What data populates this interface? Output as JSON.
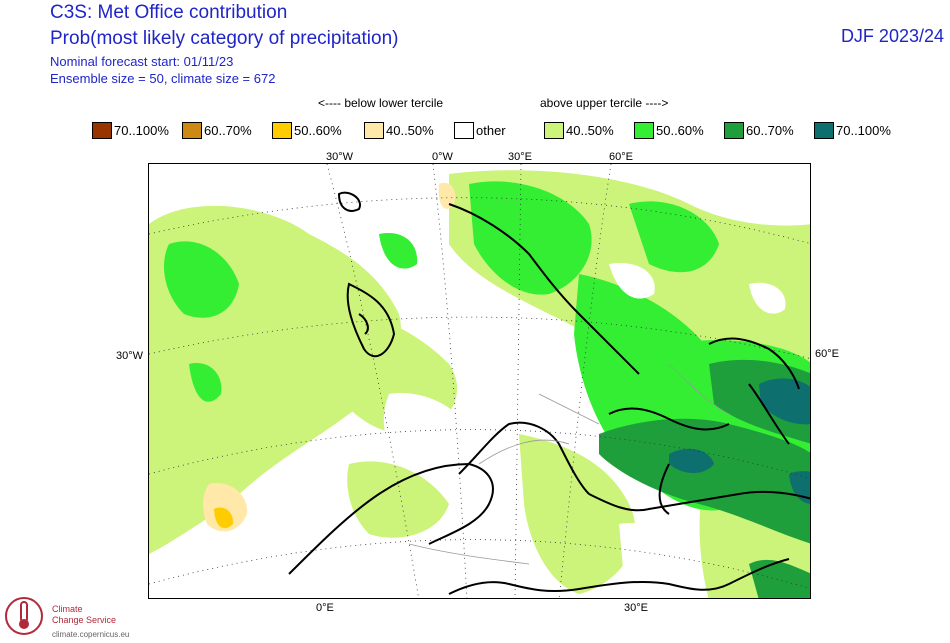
{
  "header": {
    "line1": "C3S: Met Office contribution",
    "line2": "Prob(most likely category of precipitation)",
    "line3": "Nominal forecast start: 01/11/23",
    "line4": "Ensemble size = 50, climate size = 672",
    "season": "DJF 2023/24"
  },
  "terciles": {
    "below": "<---- below lower tercile",
    "above": "above upper tercile ---->"
  },
  "legend": [
    {
      "label": "70..100%",
      "color": "#993300"
    },
    {
      "label": "60..70%",
      "color": "#cc8a14"
    },
    {
      "label": "50..60%",
      "color": "#ffcc00"
    },
    {
      "label": "40..50%",
      "color": "#ffe8a8"
    },
    {
      "label": "other",
      "color": "#ffffff"
    },
    {
      "label": "40..50%",
      "color": "#ccf37a"
    },
    {
      "label": "50..60%",
      "color": "#33ee33"
    },
    {
      "label": "60..70%",
      "color": "#1f9e3c"
    },
    {
      "label": "70..100%",
      "color": "#0d6f6e"
    }
  ],
  "grid_labels": {
    "top": [
      "30°W",
      "0°W",
      "30°E",
      "60°E"
    ],
    "left": "30°W",
    "right": "60°E",
    "bottom": [
      "0°E",
      "30°E"
    ]
  },
  "logo": {
    "line1": "Climate",
    "line2": "Change Service",
    "url": "climate.copernicus.eu"
  }
}
